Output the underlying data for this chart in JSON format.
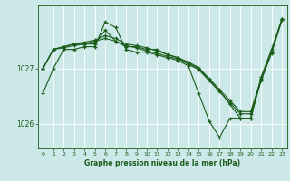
{
  "xlabel": "Graphe pression niveau de la mer (hPa)",
  "background_color": "#cce8e8",
  "line_color": "#1a5c1a",
  "grid_color": "#ffffff",
  "ylim": [
    1025.55,
    1028.15
  ],
  "xlim": [
    -0.5,
    23.5
  ],
  "yticks": [
    1026,
    1027
  ],
  "ytick_labels": [
    "1026",
    "1027"
  ],
  "series": [
    [
      1026.55,
      1027.0,
      1027.35,
      1027.35,
      1027.4,
      1027.4,
      1027.85,
      1027.75,
      1027.35,
      1027.3,
      1027.3,
      1027.25,
      1027.2,
      1027.15,
      1027.05,
      1026.55,
      1026.05,
      1025.75,
      1026.1,
      1026.1,
      1026.1,
      1026.85,
      1027.35,
      1027.9
    ],
    [
      1027.0,
      1027.35,
      1027.4,
      1027.45,
      1027.45,
      1027.45,
      1027.7,
      1027.5,
      1027.4,
      1027.4,
      1027.35,
      1027.35,
      1027.25,
      1027.2,
      1027.1,
      1027.0,
      1026.8,
      1026.6,
      1026.35,
      1026.1,
      1026.1,
      1026.8,
      1027.3,
      1027.9
    ],
    [
      1027.0,
      1027.35,
      1027.4,
      1027.45,
      1027.48,
      1027.52,
      1027.6,
      1027.55,
      1027.45,
      1027.42,
      1027.38,
      1027.32,
      1027.26,
      1027.2,
      1027.12,
      1027.02,
      1026.82,
      1026.62,
      1026.42,
      1026.22,
      1026.22,
      1026.82,
      1027.3,
      1027.9
    ],
    [
      1027.0,
      1027.35,
      1027.38,
      1027.42,
      1027.45,
      1027.5,
      1027.55,
      1027.5,
      1027.42,
      1027.38,
      1027.32,
      1027.28,
      1027.22,
      1027.18,
      1027.08,
      1026.98,
      1026.78,
      1026.58,
      1026.38,
      1026.18,
      1026.18,
      1026.78,
      1027.28,
      1027.88
    ]
  ]
}
